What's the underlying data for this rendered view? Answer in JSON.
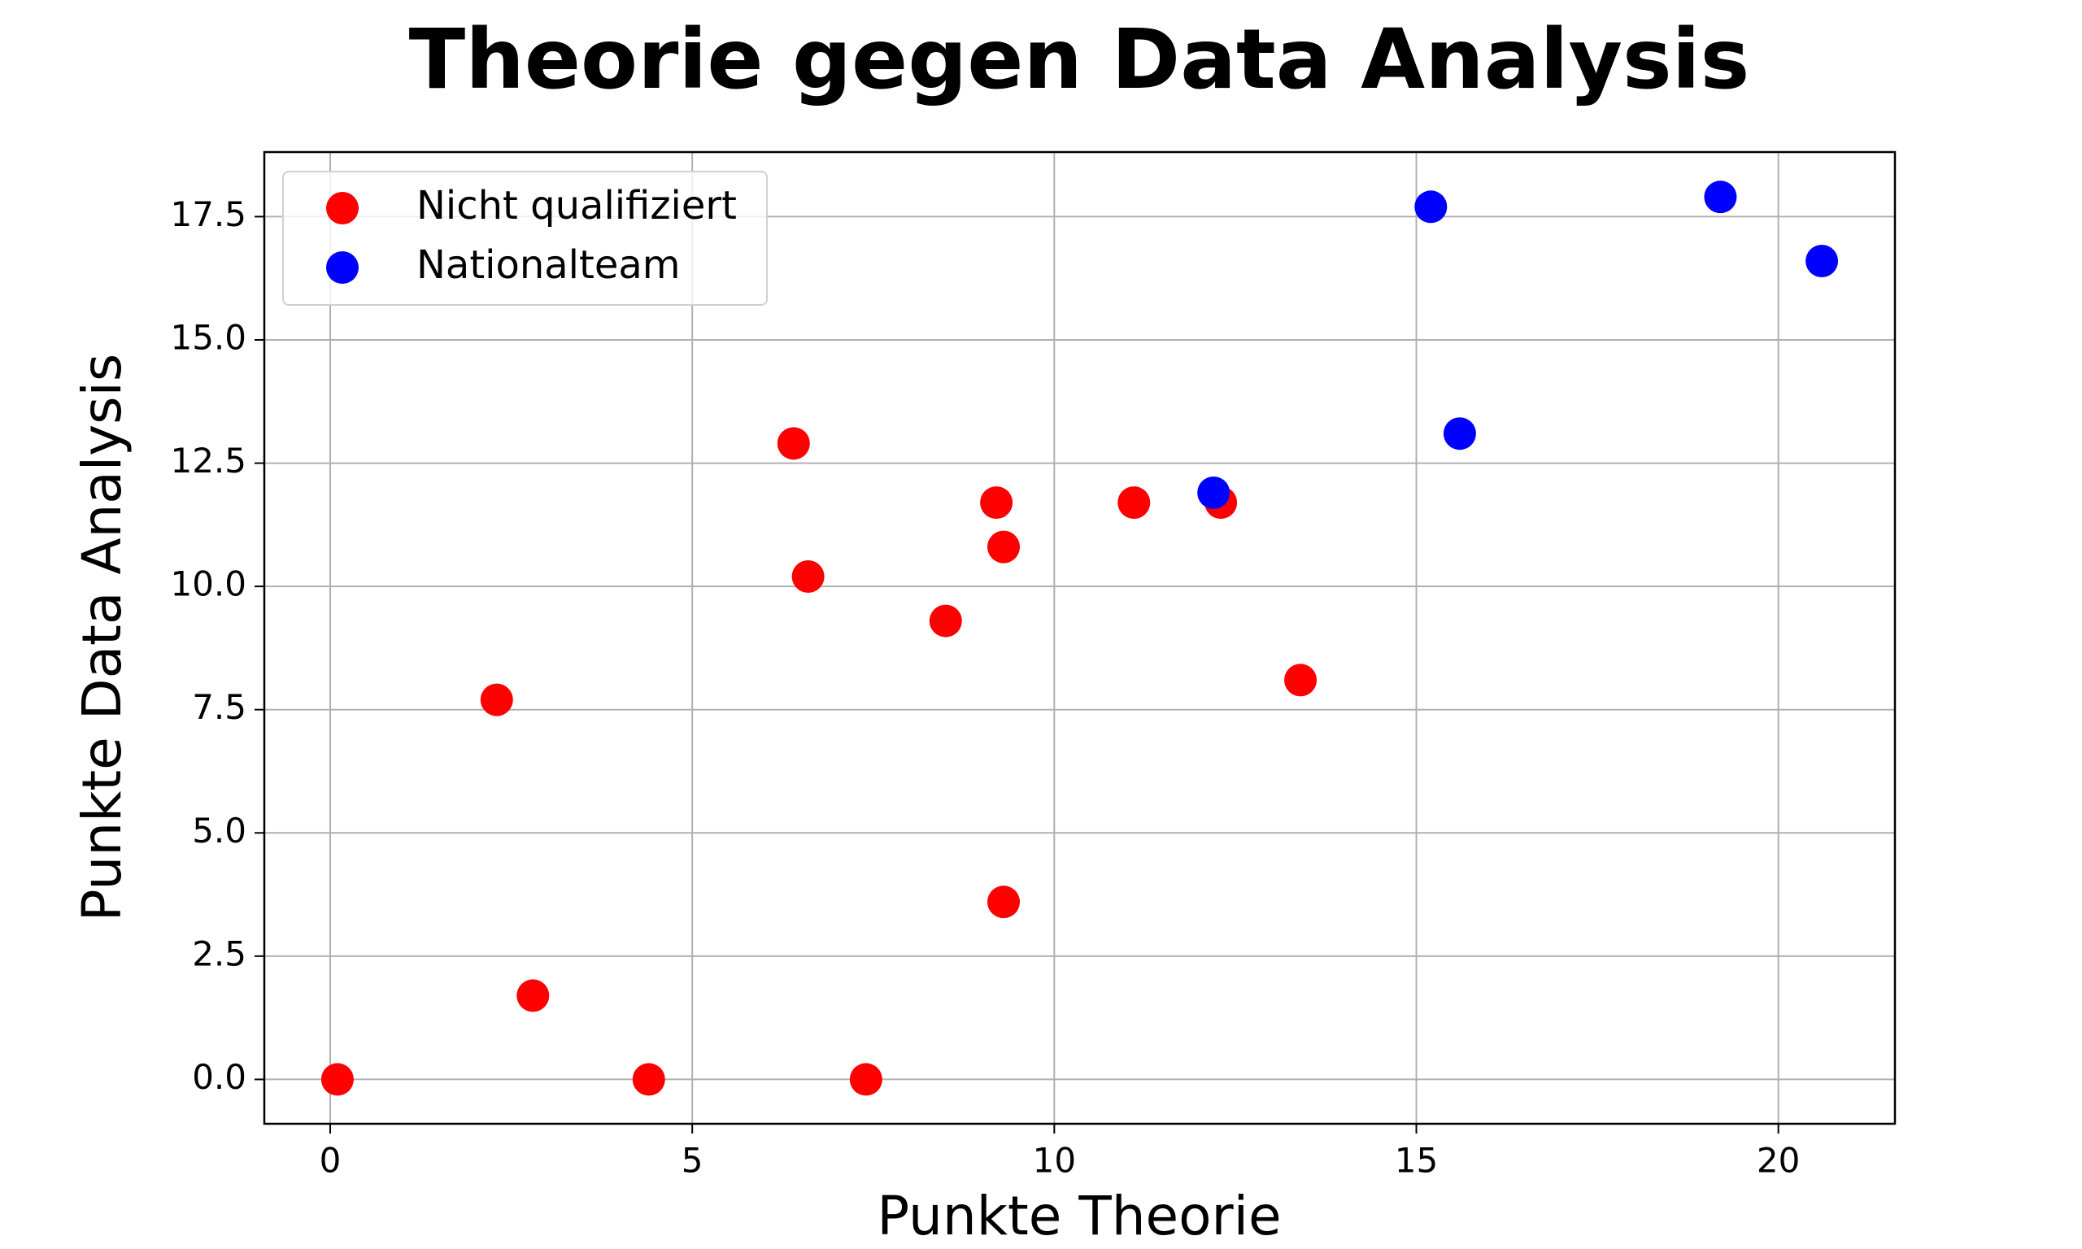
{
  "chart_data": {
    "type": "scatter",
    "title": "Theorie gegen Data Analysis",
    "x_label": "Punkte Theorie",
    "y_label": "Punkte Data Analysis",
    "series": [
      {
        "name": "Nicht qualifiziert",
        "color": "#ff0000",
        "x": [
          0.1,
          2.3,
          2.8,
          4.4,
          6.4,
          6.6,
          7.4,
          8.5,
          9.2,
          9.3,
          9.3,
          11.1,
          12.3,
          13.4
        ],
        "values": [
          0,
          7.7,
          1.7,
          0,
          12.9,
          10.2,
          0,
          9.3,
          11.7,
          10.8,
          3.6,
          11.7,
          11.7,
          8.1
        ]
      },
      {
        "name": "Nationalteam",
        "color": "#0000ff",
        "x": [
          12.2,
          15.2,
          15.6,
          19.2,
          20.6
        ],
        "values": [
          11.9,
          17.7,
          13.1,
          17.9,
          16.6
        ]
      }
    ],
    "xlim": [
      -0.91,
      21.61
    ],
    "ylim": [
      -0.9,
      18.81
    ],
    "xticks": [
      0,
      5,
      10,
      15,
      20
    ],
    "yticks": [
      {
        "value": 0,
        "label": "0.0"
      },
      2.5,
      {
        "value": 5,
        "label": "5.0"
      },
      7.5,
      {
        "value": 10,
        "label": "10.0"
      },
      12.5,
      {
        "value": 15,
        "label": "15.0"
      },
      17.5
    ],
    "grid": true,
    "legend": "upper left"
  }
}
